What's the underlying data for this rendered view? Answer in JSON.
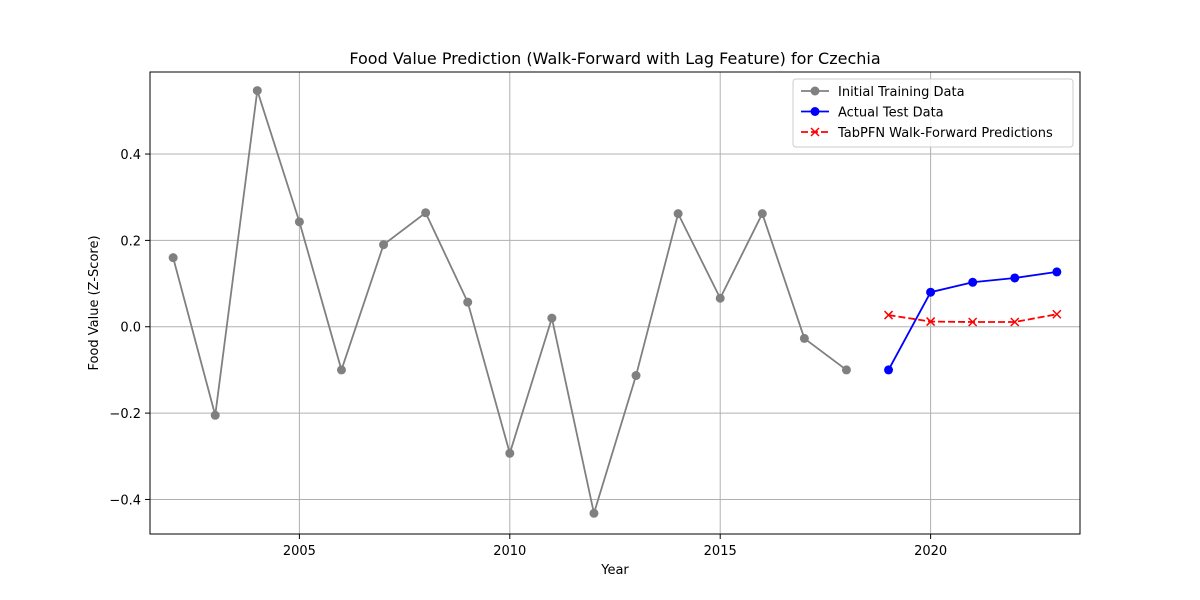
{
  "chart_data": {
    "type": "line",
    "title": "Food Value Prediction (Walk-Forward with Lag Feature) for Czechia",
    "xlabel": "Year",
    "ylabel": "Food Value (Z-Score)",
    "xlim": [
      2001.45,
      2023.55
    ],
    "ylim": [
      -0.48,
      0.59
    ],
    "xticks": [
      2005,
      2010,
      2015,
      2020
    ],
    "yticks": [
      -0.4,
      -0.2,
      0.0,
      0.2,
      0.4
    ],
    "xtick_labels": [
      "2005",
      "2010",
      "2015",
      "2020"
    ],
    "ytick_labels": [
      "−0.4",
      "−0.2",
      "0.0",
      "0.2",
      "0.4"
    ],
    "grid": true,
    "legend_position": "top-right",
    "series": [
      {
        "name": "Initial Training Data",
        "color": "#808080",
        "marker": "circle",
        "linestyle": "solid",
        "x": [
          2002,
          2003,
          2004,
          2005,
          2006,
          2007,
          2008,
          2009,
          2010,
          2011,
          2012,
          2013,
          2014,
          2015,
          2016,
          2017,
          2018
        ],
        "y": [
          0.16,
          -0.205,
          0.547,
          0.243,
          -0.1,
          0.19,
          0.264,
          0.057,
          -0.293,
          0.02,
          -0.432,
          -0.113,
          0.262,
          0.066,
          0.262,
          -0.027,
          -0.1
        ]
      },
      {
        "name": "Actual Test Data",
        "color": "#0000ff",
        "marker": "circle",
        "linestyle": "solid",
        "x": [
          2019,
          2020,
          2021,
          2022,
          2023
        ],
        "y": [
          -0.1,
          0.08,
          0.103,
          0.113,
          0.127
        ]
      },
      {
        "name": "TabPFN Walk-Forward Predictions",
        "color": "#ff0000",
        "marker": "x",
        "linestyle": "dashed",
        "x": [
          2019,
          2020,
          2021,
          2022,
          2023
        ],
        "y": [
          0.027,
          0.012,
          0.011,
          0.011,
          0.029
        ]
      }
    ]
  }
}
